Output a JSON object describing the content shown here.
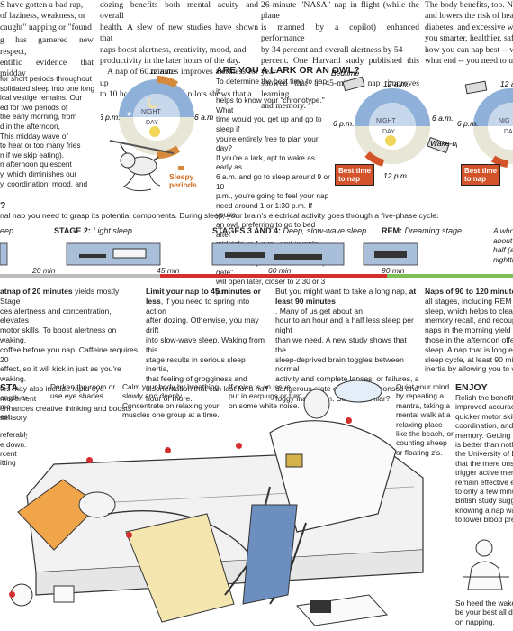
{
  "colors": {
    "accent_red": "#d32f2f",
    "night_blue": "#9fb8d6",
    "day_yellow": "#f2d65a",
    "best_time": "#d3542a",
    "bar_gray": "#bdbdbd",
    "bar_green": "#7cbf5a"
  },
  "top_columns": {
    "col1": [
      "S have gotten a bad rap,",
      "of laziness, weakness, or",
      "caught\" napping or \"found",
      "...",
      "g has garnered new respect,",
      "entific evidence that midday"
    ],
    "col2": [
      "dozing benefits both mental acuity and overall",
      "health. A slew of new studies have shown that",
      "naps boost alertness, creativity, mood, and",
      "productivity in the later hours of the day.",
      "A nap of 60 minutes improves alertness for up",
      "to 10 hours. Research on pilots shows that a"
    ],
    "col3": [
      "26-minute \"NASA\" nap in flight (while the plane",
      "is manned by a copilot) enhanced performance",
      "by 34 percent and overall alertness by 54",
      "percent. One Harvard study published this year",
      "showed that a 45-minute nap improves learning",
      "and memory."
    ],
    "col4": [
      "The body benefits, too. Nappi",
      "and lowers the risk of heart at",
      "diabetes, and excessive weight",
      "you smarter, healthier, safer. B",
      "how you can nap best -- when,",
      "what end -- you need to underst"
    ]
  },
  "left_intro": [
    "for short periods throughout",
    "solidated sleep into one long",
    "ical vestige remains. Our",
    "ed for two periods of",
    "the early morning, from",
    "d in the afternoon,",
    "This midday wave of",
    "to heat or too many fries",
    "n if we skip eating).",
    "n afternoon quiescent",
    "y, which diminishes our",
    "y, coordination, mood, and"
  ],
  "clock1": {
    "top": "12 a.m.",
    "left": "6 p.m.",
    "right": "6 a.m.",
    "night": "NIGHT",
    "day": "DAY",
    "caption": "Sleepy periods"
  },
  "lark": {
    "heading": "ARE YOU A LARK OR AN OWL?",
    "lines": [
      "To determine the best time to nap, it",
      "helps to know your \"chronotype.\" What",
      "time would you get up and go to sleep if",
      "you're entirely free to plan your day?",
      "If you're a lark, apt to wake as early as",
      "6 a.m. and go to sleep around 9 or 10",
      "p.m., you're going to feel your nap",
      "need around 1 or 1:30 p.m. If you're",
      "an owl, preferring to go to bed after",
      "midnight or 1 a.m., and to wake around",
      "8 or 9 a.m., your afternoon \"sleep gate\"",
      "will open later, closer to 2:30 or 3 p.m."
    ]
  },
  "clock2": {
    "bedtime": "Bedtime",
    "top": "12 a.m.",
    "left": "6 p.m.",
    "right": "6 a.m.",
    "night": "NIGHT",
    "day": "DAY",
    "wake": "Wake-up",
    "bottom": "12 p.m.",
    "best": "Best time to nap"
  },
  "clock3": {
    "top": "12 a.",
    "left": "6 p.m.",
    "night": "NIG",
    "day": "DA",
    "best": "Best time to nap"
  },
  "sleep_intro": {
    "head": "?",
    "text": "nal nap you need to grasp its potential components. During sleep, your brain's electrical activity goes through a five-phase cycle:"
  },
  "stages": {
    "s1": "eep",
    "s2_b": "STAGE 2:",
    "s2_i": "Light sleep.",
    "s34_b": "STAGES 3 AND 4:",
    "s34_i": "Deep, slow-wave sleep.",
    "rem_b": "REM:",
    "rem_i": "Dreaming stage.",
    "right": [
      "A whol",
      "about",
      "half (a",
      "nightti"
    ]
  },
  "ticks": {
    "t20": "20 min",
    "t45": "45 min",
    "t60": "60 min",
    "t90": "90 min"
  },
  "blocks": {
    "b1": {
      "bold": "atnap of 20 minutes",
      "lines": [
        " yields mostly Stage",
        "ces alertness and concentration, elevates",
        "motor skills. To boost alertness on waking,",
        "coffee before you nap. Caffeine requires 20",
        "effect, so it will kick in just as you're waking.",
        "tes may also include rapid eye movement",
        "enhances creative thinking and boosts sensory"
      ]
    },
    "b2": {
      "bold": "Limit your nap to 45 minutes or less",
      "lines": [
        ", if you need to spring into action",
        "after dozing. Otherwise, you may drift",
        "into slow-wave sleep. Waking from this",
        "stage results in serious sleep inertia,",
        "that feeling of grogginess and",
        "disorientation that can last for a half",
        "hour or more."
      ]
    },
    "b3": {
      "lines": [
        "But you might want to take a long nap, ",
        "at least 90 minutes",
        ". Many of us get about an",
        "hour to an hour and a half less sleep per night",
        "than we need. A new study shows that the",
        "sleep-deprived brain toggles between normal",
        "activity and complete lapses, or failures, a",
        "dangerous state of slowed responses and",
        "foggy inattention. Sound familiar?"
      ]
    },
    "b4": {
      "bold": "Naps of 90 to 120 minutes",
      "lines": [
        " u",
        "all stages, including REM and de",
        "sleep, which helps to clear your",
        "memory recall, and recoup lost",
        "naps in the morning yield more",
        "those in the afternoon offer mo",
        "sleep. A nap that is long enough",
        "sleep cycle, at least 90 minutes",
        "inertia by allowing you to wake"
      ]
    }
  },
  "tips": {
    "sta": "STA",
    "left": [
      "ength are",
      "me",
      "est:",
      "",
      "referably",
      "e down.",
      "rcent",
      "itting"
    ],
    "darken": [
      "Darken the room or",
      "use eye shades."
    ],
    "calm": [
      "Calm your body by breathing",
      "slowly and deeply.",
      "Concentrate on relaxing your",
      "muscles one group at a time."
    ],
    "noise": [
      "If noise is an issue,",
      "put in earplugs or turn",
      "on some white noise."
    ],
    "quiet": [
      "Quiet your mind",
      "by repeating a",
      "mantra, taking a",
      "mental walk at a",
      "relaxing place",
      "like the beach, or",
      "counting sheep",
      "or floating z's."
    ]
  },
  "enjoy": {
    "head": "ENJOY",
    "lines": [
      "Relish the benefits of",
      "improved accuracy an",
      "quicker motor skills, l",
      "coordination, and enh",
      "memory. Getting eve",
      "is better than nothing",
      "the University of Düss",
      "that the mere onset o",
      "trigger active memor",
      "remain effective eve",
      "to only a few minutes",
      "British study suggest",
      "knowing a nap was c",
      "to lower blood pressu"
    ],
    "bottom": [
      "So heed the wake-up",
      "be your best all day l",
      "on napping."
    ]
  }
}
